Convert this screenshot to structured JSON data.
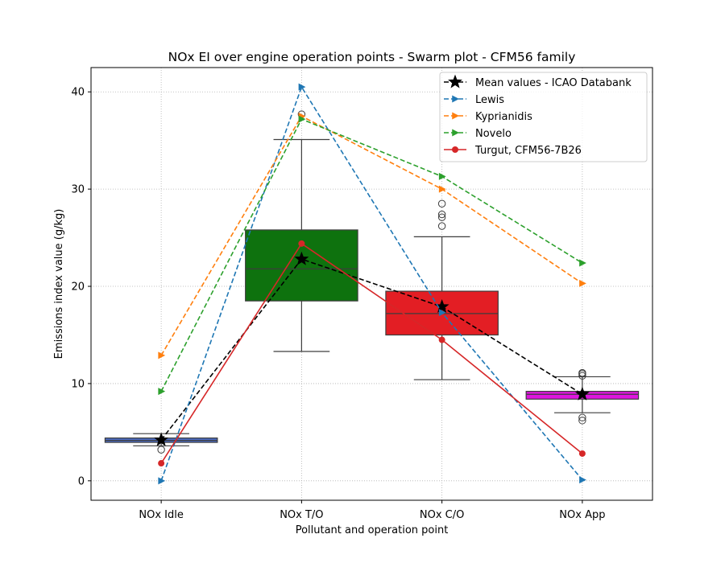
{
  "chart_data": {
    "type": "box",
    "title": "NOx EI over engine operation points - Swarm plot - CFM56 family",
    "xlabel": "Pollutant and operation point",
    "ylabel": "Emissions index value (g/kg)",
    "categories": [
      "NOx Idle",
      "NOx T/O",
      "NOx C/O",
      "NOx App"
    ],
    "ylim": [
      -2,
      42.5
    ],
    "yticks": [
      0,
      10,
      20,
      30,
      40
    ],
    "grid": true,
    "legend_position": "top-right",
    "boxes": [
      {
        "category": "NOx Idle",
        "color": "#4c6cc4",
        "q1": 3.95,
        "median": 4.15,
        "q3": 4.4,
        "whisker_low": 3.6,
        "whisker_high": 4.85,
        "outliers": [
          3.2
        ]
      },
      {
        "category": "NOx T/O",
        "color": "#0e720e",
        "q1": 18.5,
        "median": 21.8,
        "q3": 25.8,
        "whisker_low": 13.3,
        "whisker_high": 35.1,
        "outliers": [
          37.7
        ]
      },
      {
        "category": "NOx C/O",
        "color": "#e31e24",
        "q1": 15.0,
        "median": 17.2,
        "q3": 19.5,
        "whisker_low": 10.4,
        "whisker_high": 25.1,
        "outliers": [
          26.2,
          27.1,
          27.4,
          28.5
        ]
      },
      {
        "category": "NOx App",
        "color": "#de16de",
        "q1": 8.4,
        "median": 8.9,
        "q3": 9.2,
        "whisker_low": 7.0,
        "whisker_high": 10.7,
        "outliers": [
          6.2,
          6.5,
          10.8,
          11.0,
          11.1
        ]
      }
    ],
    "series": [
      {
        "name": "Mean values - ICAO Databank",
        "color": "#000000",
        "line": "dashed",
        "marker": "star",
        "values": [
          4.2,
          22.8,
          17.9,
          8.9
        ]
      },
      {
        "name": "Lewis",
        "color": "#1f77b4",
        "line": "dashed",
        "marker": "triangle-right",
        "values": [
          0.0,
          40.5,
          17.3,
          0.1
        ]
      },
      {
        "name": "Kyprianidis",
        "color": "#ff7f0e",
        "line": "dashed",
        "marker": "triangle-right",
        "values": [
          12.9,
          37.5,
          30.0,
          20.3
        ]
      },
      {
        "name": "Novelo",
        "color": "#2ca02c",
        "line": "dashed",
        "marker": "triangle-right",
        "values": [
          9.2,
          37.2,
          31.3,
          22.4
        ]
      },
      {
        "name": "Turgut, CFM56-7B26",
        "color": "#d62728",
        "line": "solid",
        "marker": "circle",
        "values": [
          1.8,
          24.4,
          14.5,
          2.8
        ]
      }
    ]
  }
}
